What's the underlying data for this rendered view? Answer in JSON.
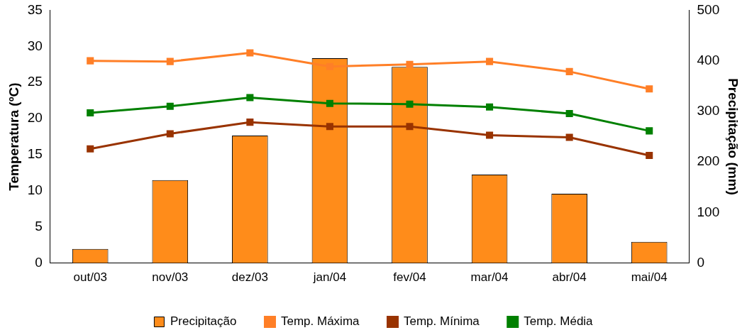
{
  "chart_data": {
    "type": "line",
    "categories": [
      "out/03",
      "nov/03",
      "dez/03",
      "jan/04",
      "fev/04",
      "mar/04",
      "abr/04",
      "mai/04"
    ],
    "ylabel": "Temperatura (ºC)",
    "y2label": "Precipitação (mm)",
    "ylim": [
      0,
      35
    ],
    "yticks": [
      0,
      5,
      10,
      15,
      20,
      25,
      30,
      35
    ],
    "y2lim": [
      0,
      500
    ],
    "y2ticks": [
      0,
      100,
      200,
      300,
      400,
      500
    ],
    "grid": false,
    "legend": "bottom",
    "marker": "square",
    "series": [
      {
        "name": "Precipitação",
        "type": "bar",
        "axis": "y2",
        "color": "#ff8c1a",
        "values": [
          28,
          164,
          252,
          405,
          388,
          175,
          137,
          42
        ]
      },
      {
        "name": "Temp. Máxima",
        "color": "#ff7f27",
        "values": [
          28.0,
          27.9,
          29.1,
          27.2,
          27.5,
          27.9,
          26.5,
          24.1
        ]
      },
      {
        "name": "Temp. Mínima",
        "color": "#993300",
        "values": [
          15.8,
          17.9,
          19.5,
          18.9,
          18.9,
          17.7,
          17.4,
          14.9
        ]
      },
      {
        "name": "Temp. Média",
        "color": "#008000",
        "values": [
          20.8,
          21.7,
          22.9,
          22.1,
          22.0,
          21.6,
          20.7,
          18.3
        ]
      }
    ]
  }
}
